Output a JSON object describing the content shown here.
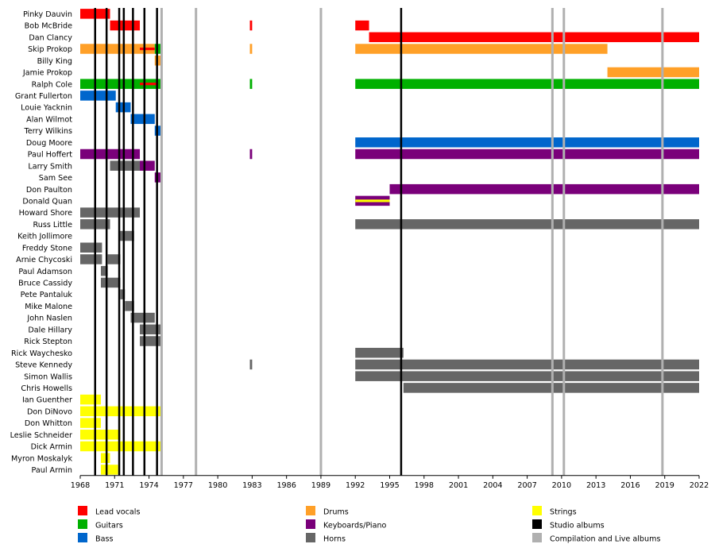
{
  "chart_data": {
    "type": "timeline",
    "xlim": [
      1968,
      2022
    ],
    "x_ticks": [
      "1968",
      "1971",
      "1974",
      "1977",
      "1980",
      "1983",
      "1986",
      "1989",
      "1992",
      "1995",
      "1998",
      "2001",
      "2004",
      "2007",
      "2010",
      "2013",
      "2016",
      "2019",
      "2022"
    ],
    "members": [
      "Pinky Dauvin",
      "Bob McBride",
      "Dan Clancy",
      "Skip Prokop",
      "Billy King",
      "Jamie Prokop",
      "Ralph Cole",
      "Grant Fullerton",
      "Louie Yacknin",
      "Alan Wilmot",
      "Terry Wilkins",
      "Doug Moore",
      "Paul Hoffert",
      "Larry Smith",
      "Sam See",
      "Don Paulton",
      "Donald Quan",
      "Howard Shore",
      "Russ Little",
      "Keith Jollimore",
      "Freddy Stone",
      "Arnie Chycoski",
      "Paul Adamson",
      "Bruce Cassidy",
      "Pete Pantaluk",
      "Mike Malone",
      "John Naslen",
      "Dale Hillary",
      "Rick Stepton",
      "Rick Waychesko",
      "Steve Kennedy",
      "Simon Wallis",
      "Chris Howells",
      "Ian Guenther",
      "Don DiNovo",
      "Don Whitton",
      "Leslie Schneider",
      "Dick Armin",
      "Myron Moskalyk",
      "Paul Armin"
    ],
    "roles": [
      {
        "key": "vocals",
        "label": "Lead vocals",
        "color": "#ff0000"
      },
      {
        "key": "guitars",
        "label": "Guitars",
        "color": "#00b000"
      },
      {
        "key": "bass",
        "label": "Bass",
        "color": "#0066cc"
      },
      {
        "key": "drums",
        "label": "Drums",
        "color": "#ffa028"
      },
      {
        "key": "keys",
        "label": "Keyboards/Piano",
        "color": "#7a007a"
      },
      {
        "key": "horns",
        "label": "Horns",
        "color": "#666666"
      },
      {
        "key": "strings",
        "label": "Strings",
        "color": "#ffff00"
      },
      {
        "key": "studio",
        "label": "Studio albums",
        "color": "#000000"
      },
      {
        "key": "compilation",
        "label": "Compilation and Live albums",
        "color": "#b0b0b0"
      }
    ],
    "bars": [
      {
        "member": 0,
        "role": "vocals",
        "start": 1968.0,
        "end": 1970.6
      },
      {
        "member": 1,
        "role": "vocals",
        "start": 1970.6,
        "end": 1973.2
      },
      {
        "member": 1,
        "role": "vocals",
        "start": 1982.8,
        "end": 1983.0
      },
      {
        "member": 1,
        "role": "vocals",
        "start": 1992.0,
        "end": 1993.2
      },
      {
        "member": 2,
        "role": "vocals",
        "start": 1993.2,
        "end": 2022.0
      },
      {
        "member": 3,
        "role": "drums",
        "start": 1968.0,
        "end": 1974.5
      },
      {
        "member": 3,
        "role": "guitars",
        "start": 1974.5,
        "end": 1975.0
      },
      {
        "member": 3,
        "role": "drums",
        "start": 1982.8,
        "end": 1983.0
      },
      {
        "member": 3,
        "role": "drums",
        "start": 1992.0,
        "end": 2014.0
      },
      {
        "member": 4,
        "role": "drums",
        "start": 1974.5,
        "end": 1975.0
      },
      {
        "member": 5,
        "role": "drums",
        "start": 2014.0,
        "end": 2022.0
      },
      {
        "member": 6,
        "role": "guitars",
        "start": 1968.0,
        "end": 1975.0
      },
      {
        "member": 6,
        "role": "guitars",
        "start": 1982.8,
        "end": 1983.0
      },
      {
        "member": 6,
        "role": "guitars",
        "start": 1992.0,
        "end": 2022.0
      },
      {
        "member": 7,
        "role": "bass",
        "start": 1968.0,
        "end": 1971.1
      },
      {
        "member": 8,
        "role": "bass",
        "start": 1971.1,
        "end": 1972.4
      },
      {
        "member": 9,
        "role": "bass",
        "start": 1972.4,
        "end": 1974.5
      },
      {
        "member": 10,
        "role": "bass",
        "start": 1974.5,
        "end": 1975.0
      },
      {
        "member": 11,
        "role": "bass",
        "start": 1992.0,
        "end": 2022.0
      },
      {
        "member": 12,
        "role": "keys",
        "start": 1968.0,
        "end": 1973.2
      },
      {
        "member": 12,
        "role": "keys",
        "start": 1982.8,
        "end": 1983.0
      },
      {
        "member": 12,
        "role": "keys",
        "start": 1992.0,
        "end": 2022.0
      },
      {
        "member": 13,
        "role": "horns",
        "start": 1970.6,
        "end": 1973.2
      },
      {
        "member": 13,
        "role": "keys",
        "start": 1973.2,
        "end": 1974.5
      },
      {
        "member": 14,
        "role": "keys",
        "start": 1974.5,
        "end": 1975.0
      },
      {
        "member": 15,
        "role": "keys",
        "start": 1995.0,
        "end": 2022.0
      },
      {
        "member": 16,
        "role": "keys",
        "start": 1992.0,
        "end": 1995.0
      },
      {
        "member": 17,
        "role": "horns",
        "start": 1968.0,
        "end": 1973.2
      },
      {
        "member": 18,
        "role": "horns",
        "start": 1968.0,
        "end": 1970.6
      },
      {
        "member": 18,
        "role": "horns",
        "start": 1992.0,
        "end": 2022.0
      },
      {
        "member": 19,
        "role": "horns",
        "start": 1971.4,
        "end": 1972.7
      },
      {
        "member": 20,
        "role": "horns",
        "start": 1968.0,
        "end": 1969.9
      },
      {
        "member": 21,
        "role": "horns",
        "start": 1968.0,
        "end": 1969.9
      },
      {
        "member": 21,
        "role": "horns",
        "start": 1970.4,
        "end": 1971.5
      },
      {
        "member": 22,
        "role": "horns",
        "start": 1969.8,
        "end": 1970.4
      },
      {
        "member": 23,
        "role": "horns",
        "start": 1969.8,
        "end": 1971.5
      },
      {
        "member": 24,
        "role": "horns",
        "start": 1971.5,
        "end": 1971.9
      },
      {
        "member": 25,
        "role": "horns",
        "start": 1971.9,
        "end": 1972.7
      },
      {
        "member": 26,
        "role": "horns",
        "start": 1972.4,
        "end": 1974.5
      },
      {
        "member": 27,
        "role": "horns",
        "start": 1973.2,
        "end": 1975.0
      },
      {
        "member": 28,
        "role": "horns",
        "start": 1973.2,
        "end": 1975.0
      },
      {
        "member": 29,
        "role": "horns",
        "start": 1992.0,
        "end": 1996.2
      },
      {
        "member": 30,
        "role": "horns",
        "start": 1982.8,
        "end": 1983.0
      },
      {
        "member": 30,
        "role": "horns",
        "start": 1992.0,
        "end": 2022.0
      },
      {
        "member": 31,
        "role": "horns",
        "start": 1992.0,
        "end": 2022.0
      },
      {
        "member": 32,
        "role": "horns",
        "start": 1996.2,
        "end": 2022.0
      },
      {
        "member": 33,
        "role": "strings",
        "start": 1968.0,
        "end": 1969.8
      },
      {
        "member": 34,
        "role": "strings",
        "start": 1968.0,
        "end": 1975.0
      },
      {
        "member": 35,
        "role": "strings",
        "start": 1968.0,
        "end": 1969.8
      },
      {
        "member": 36,
        "role": "strings",
        "start": 1968.0,
        "end": 1971.5
      },
      {
        "member": 37,
        "role": "strings",
        "start": 1968.0,
        "end": 1975.0
      },
      {
        "member": 38,
        "role": "strings",
        "start": 1969.8,
        "end": 1970.6
      },
      {
        "member": 39,
        "role": "strings",
        "start": 1969.8,
        "end": 1971.3
      }
    ],
    "overlays": [
      {
        "member": 3,
        "role": "vocals",
        "start": 1973.2,
        "end": 1974.5
      },
      {
        "member": 6,
        "role": "vocals",
        "start": 1973.2,
        "end": 1974.8
      },
      {
        "member": 16,
        "role": "strings",
        "start": 1992.0,
        "end": 1995.0
      }
    ],
    "studio_albums": [
      1969.3,
      1970.3,
      1971.4,
      1971.8,
      1972.6,
      1973.6,
      1974.7,
      1996.0
    ],
    "compilation_albums": [
      1975.1,
      1978.1,
      1989.0,
      2009.2,
      2010.2,
      2018.8
    ]
  }
}
